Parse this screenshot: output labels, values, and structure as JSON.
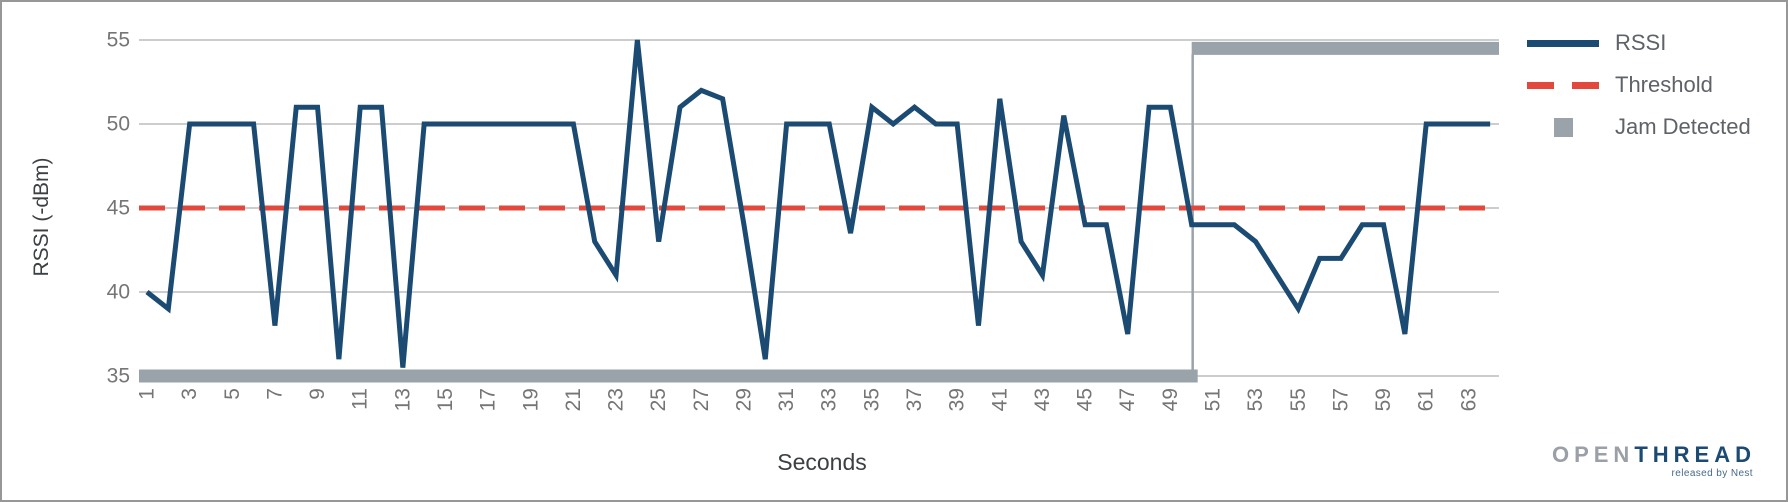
{
  "chart_data": {
    "type": "line",
    "title": "",
    "x_axis": {
      "title": "Seconds",
      "tick_labels": [
        1,
        3,
        5,
        7,
        9,
        11,
        13,
        15,
        17,
        19,
        21,
        23,
        25,
        27,
        29,
        31,
        33,
        35,
        37,
        39,
        41,
        43,
        45,
        47,
        49,
        51,
        53,
        55,
        57,
        59,
        61,
        63
      ],
      "range": [
        1,
        64
      ],
      "tick_rotation_degrees": -90
    },
    "y_axis": {
      "title": "RSSI (-dBm)",
      "ticks": [
        55,
        50,
        45,
        40,
        35
      ],
      "range": [
        35,
        55
      ],
      "grid": true
    },
    "seconds": [
      1,
      2,
      3,
      4,
      5,
      6,
      7,
      8,
      9,
      10,
      11,
      12,
      13,
      14,
      15,
      16,
      17,
      18,
      19,
      20,
      21,
      22,
      23,
      24,
      25,
      26,
      27,
      28,
      29,
      30,
      31,
      32,
      33,
      34,
      35,
      36,
      37,
      38,
      39,
      40,
      41,
      42,
      43,
      44,
      45,
      46,
      47,
      48,
      49,
      50,
      51,
      52,
      53,
      54,
      55,
      56,
      57,
      58,
      59,
      60,
      61,
      62,
      63,
      64
    ],
    "series": [
      {
        "name": "RSSI",
        "type": "line",
        "color": "#1b4a72",
        "values": [
          40,
          39,
          50,
          50,
          50,
          50,
          38,
          51,
          51,
          36,
          51,
          51,
          35.5,
          50,
          50,
          50,
          50,
          50,
          50,
          50,
          50,
          43,
          41,
          55,
          43,
          51,
          52,
          51.5,
          44,
          36,
          50,
          50,
          50,
          43.5,
          51,
          50,
          51,
          50,
          50,
          38,
          51.5,
          43,
          41,
          50.5,
          44,
          44,
          37.5,
          51,
          51,
          44,
          44,
          44,
          43,
          41,
          39,
          42,
          42,
          44,
          44,
          37.5,
          50,
          50,
          50,
          50
        ]
      },
      {
        "name": "Threshold",
        "type": "dashed-line",
        "color": "#e2483b",
        "value": 45
      },
      {
        "name": "Jam Detected",
        "type": "step",
        "color": "#9aa3aa",
        "low_value": 35,
        "high_value": 54.5,
        "step_at_second": 50
      }
    ],
    "legend": {
      "position": "right"
    }
  },
  "legend": {
    "items": [
      {
        "label": "RSSI",
        "marker": "solid-line-swatch"
      },
      {
        "label": "Threshold",
        "marker": "dashed-line-swatch"
      },
      {
        "label": "Jam Detected",
        "marker": "square-swatch"
      }
    ]
  },
  "branding": {
    "logo_gray": "OPEN",
    "logo_blue": "THREAD",
    "tagline": "released by Nest"
  },
  "colors": {
    "rssi_blue": "#1b4a72",
    "threshold_red": "#e2483b",
    "jam_gray": "#9aa3aa",
    "gridline": "#cdcdcd",
    "tick_text": "#757575",
    "axis_title_text": "#3c4043",
    "legend_text": "#5f6368",
    "logo_gray_text": "#9aa0a6",
    "frame_border": "#979797"
  }
}
